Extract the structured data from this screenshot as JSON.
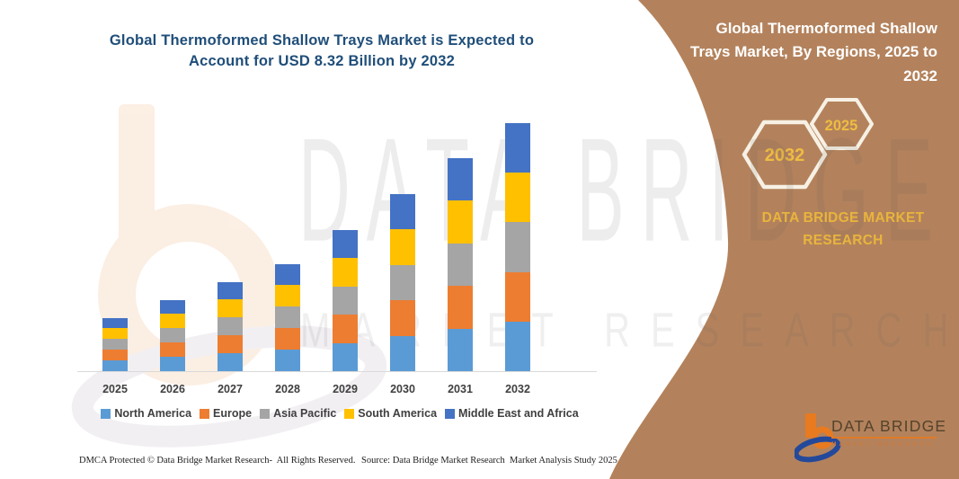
{
  "header": {
    "title": "Global Thermoformed Shallow Trays Market is Expected to Account for USD 8.32 Billion by 2032",
    "title_color": "#1F4E79"
  },
  "side_panel": {
    "bg_color": "#B3825C",
    "title_lines": [
      "Global Thermoformed Shallow",
      "Trays Market, By Regions, 2025 to",
      "2032"
    ],
    "hexagon_years": [
      "2032",
      "2025"
    ],
    "hexagon_text_color": "#EFBC42",
    "hexagon_border_color": "#F7F1E5",
    "brand_text": "DATA BRIDGE MARKET RESEARCH",
    "gold_color": "#E9B43C"
  },
  "watermark": {
    "line1": "DATA BRIDGE",
    "line2": "MARKET RESEARCH"
  },
  "chart_data": {
    "type": "bar",
    "stacked": true,
    "title": "Global Thermoformed Shallow Trays Market is Expected to Account for USD 8.32 Billion by 2032",
    "unit": "USD Billion",
    "categories": [
      "2025",
      "2026",
      "2027",
      "2028",
      "2029",
      "2030",
      "2031",
      "2032"
    ],
    "series": [
      {
        "name": "North America",
        "color": "#5B9BD5",
        "values": [
          0.36,
          0.48,
          0.6,
          0.72,
          0.95,
          1.19,
          1.43,
          1.664
        ]
      },
      {
        "name": "Europe",
        "color": "#ED7D31",
        "values": [
          0.36,
          0.48,
          0.6,
          0.72,
          0.95,
          1.19,
          1.43,
          1.664
        ]
      },
      {
        "name": "Asia Pacific",
        "color": "#A5A5A5",
        "values": [
          0.36,
          0.48,
          0.6,
          0.72,
          0.95,
          1.19,
          1.43,
          1.664
        ]
      },
      {
        "name": "South America",
        "color": "#FFC000",
        "values": [
          0.36,
          0.48,
          0.6,
          0.72,
          0.95,
          1.19,
          1.43,
          1.664
        ]
      },
      {
        "name": "Middle East and Africa",
        "color": "#4472C4",
        "values": [
          0.36,
          0.48,
          0.6,
          0.72,
          0.95,
          1.19,
          1.43,
          1.664
        ]
      }
    ],
    "totals": [
      1.8,
      2.4,
      3.0,
      3.6,
      4.75,
      5.95,
      7.15,
      8.32
    ],
    "ylim": [
      0,
      8.6
    ],
    "gridlines": false,
    "axis": "x-only",
    "legend_position": "bottom"
  },
  "footer": {
    "dmca_text": "DMCA Protected © Data Bridge Market Research-  All Rights Reserved.",
    "source_text": "Source: Data Bridge Market Research  Market Analysis Study 2025"
  },
  "logo": {
    "title": "DATA BRIDGE",
    "subtitle": "MARKET RESEARCH",
    "orange": "#E87A20",
    "blue": "#24499B",
    "text_color": "#55432C"
  }
}
